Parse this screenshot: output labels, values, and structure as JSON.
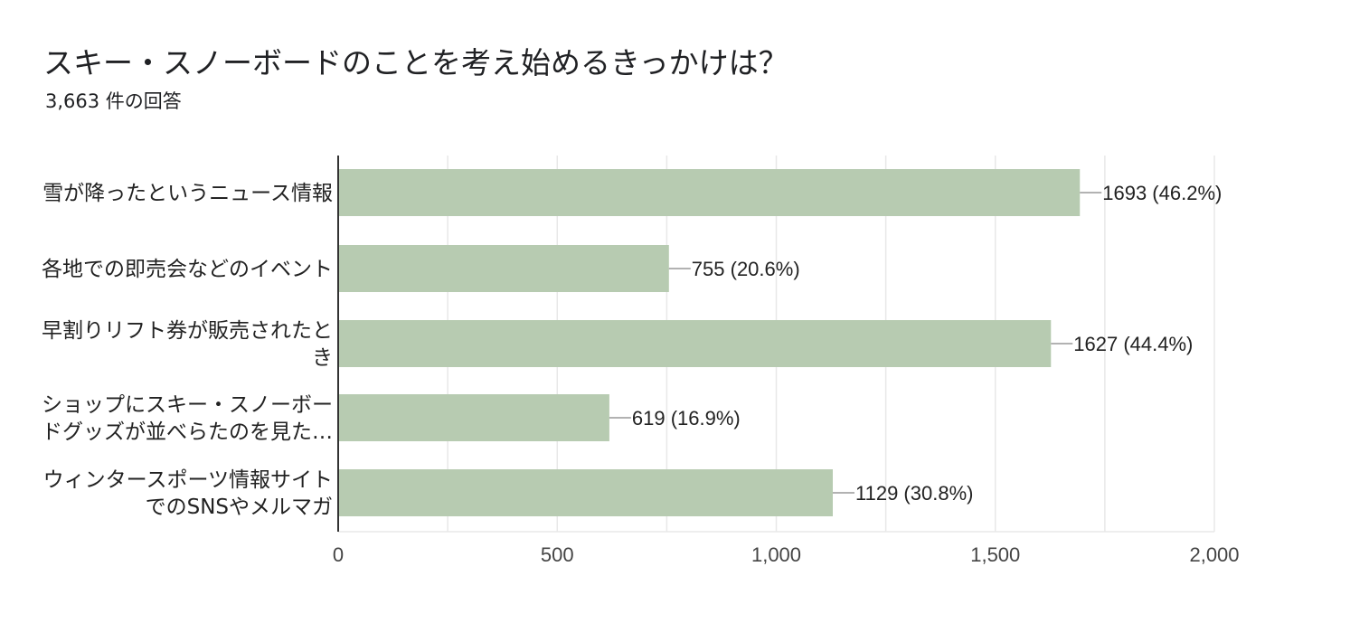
{
  "header": {
    "title": "スキー・スノーボードのことを考え始めるきっかけは？",
    "response_count": "3,663 件の回答"
  },
  "colors": {
    "bar": "#b7cbb1",
    "grid": "#e8e8e8",
    "axis": "#333333",
    "leader": "#999999"
  },
  "chart_data": {
    "type": "bar",
    "orientation": "horizontal",
    "categories": [
      [
        "雪が降ったというニュース情報"
      ],
      [
        "各地での即売会などのイベント"
      ],
      [
        "早割りリフト券が販売されたと",
        "き"
      ],
      [
        "ショップにスキー・スノーボー",
        "ドグッズが並べらたのを見た…"
      ],
      [
        "ウィンタースポーツ情報サイト",
        "でのSNSやメルマガ"
      ]
    ],
    "values": [
      1693,
      755,
      1627,
      619,
      1129
    ],
    "data_labels": [
      "1693 (46.2%)",
      "755 (20.6%)",
      "1627 (44.4%)",
      "619 (16.9%)",
      "1129 (30.8%)"
    ],
    "x_ticks": [
      0,
      500,
      1000,
      1500,
      2000
    ],
    "x_tick_labels": [
      "0",
      "500",
      "1,000",
      "1,500",
      "2,000"
    ],
    "xlim": [
      0,
      2000
    ],
    "grid": true,
    "minor_grid_step": 250,
    "legend": "none"
  }
}
